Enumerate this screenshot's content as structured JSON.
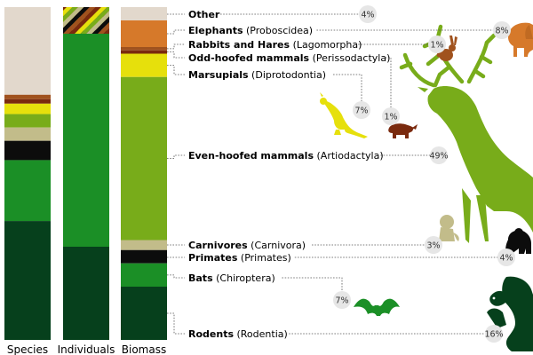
{
  "chart_data": {
    "type": "stacked-bar",
    "categories": [
      "Species",
      "Individuals",
      "Biomass"
    ],
    "legend_placement": "right",
    "groups": [
      {
        "key": "other",
        "name": "Other",
        "latin": "",
        "color": "#e2d8cc",
        "values": [
          29.5,
          0.0,
          4.0
        ],
        "pct_label": "4%"
      },
      {
        "key": "elephants",
        "name": "Elephants",
        "latin": "(Proboscidea)",
        "color": "#d6792a",
        "values": [
          0.0,
          0.0,
          8.0
        ],
        "pct_label": "8%"
      },
      {
        "key": "rabbits",
        "name": "Rabbits and Hares",
        "latin": "(Lagomorpha)",
        "color": "#a0521e",
        "values": [
          1.5,
          1.5,
          1.0
        ],
        "pct_label": "1%"
      },
      {
        "key": "oddhoofed",
        "name": "Odd-hoofed mammals",
        "latin": "(Perissodactyla)",
        "color": "#7a2a0e",
        "values": [
          1.5,
          1.5,
          1.0
        ],
        "pct_label": "1%"
      },
      {
        "key": "marsupials",
        "name": "Marsupials",
        "latin": "(Diprotodontia)",
        "color": "#e6e00c",
        "values": [
          3.5,
          1.5,
          7.0
        ],
        "pct_label": "7%"
      },
      {
        "key": "evenhoofed",
        "name": "Even-hoofed mammals",
        "latin": "(Artiodactyla)",
        "color": "#78ac1a",
        "values": [
          4.5,
          1.0,
          49.0
        ],
        "pct_label": "49%"
      },
      {
        "key": "carnivores",
        "name": "Carnivores",
        "latin": "(Carnivora)",
        "color": "#c2bc8a",
        "values": [
          4.5,
          1.5,
          3.0
        ],
        "pct_label": "3%"
      },
      {
        "key": "primates",
        "name": "Primates",
        "latin": "(Primates)",
        "color": "#0c0c0c",
        "values": [
          6.5,
          1.0,
          4.0
        ],
        "pct_label": "4%"
      },
      {
        "key": "bats",
        "name": "Bats",
        "latin": "(Chiroptera)",
        "color": "#1b8f26",
        "values": [
          20.5,
          64.0,
          7.0
        ],
        "pct_label": "7%"
      },
      {
        "key": "rodents",
        "name": "Rodents",
        "latin": "(Rodentia)",
        "color": "#06401c",
        "values": [
          40.0,
          28.0,
          16.0
        ],
        "pct_label": "16%"
      }
    ],
    "icons": [
      {
        "key": "elephants",
        "name": "elephant-icon",
        "color": "#d6792a"
      },
      {
        "key": "rabbits",
        "name": "rabbit-icon",
        "color": "#a0521e"
      },
      {
        "key": "marsupials",
        "name": "kangaroo-icon",
        "color": "#e6e00c"
      },
      {
        "key": "oddhoofed",
        "name": "rhino-icon",
        "color": "#7a2a0e"
      },
      {
        "key": "evenhoofed",
        "name": "deer-icon",
        "color": "#78ac1a"
      },
      {
        "key": "carnivores",
        "name": "lion-icon",
        "color": "#c2bc8a"
      },
      {
        "key": "primates",
        "name": "gorilla-icon",
        "color": "#0c0c0c"
      },
      {
        "key": "bats",
        "name": "bat-icon",
        "color": "#1b8f26"
      },
      {
        "key": "rodents",
        "name": "squirrel-icon",
        "color": "#06401c"
      }
    ]
  }
}
